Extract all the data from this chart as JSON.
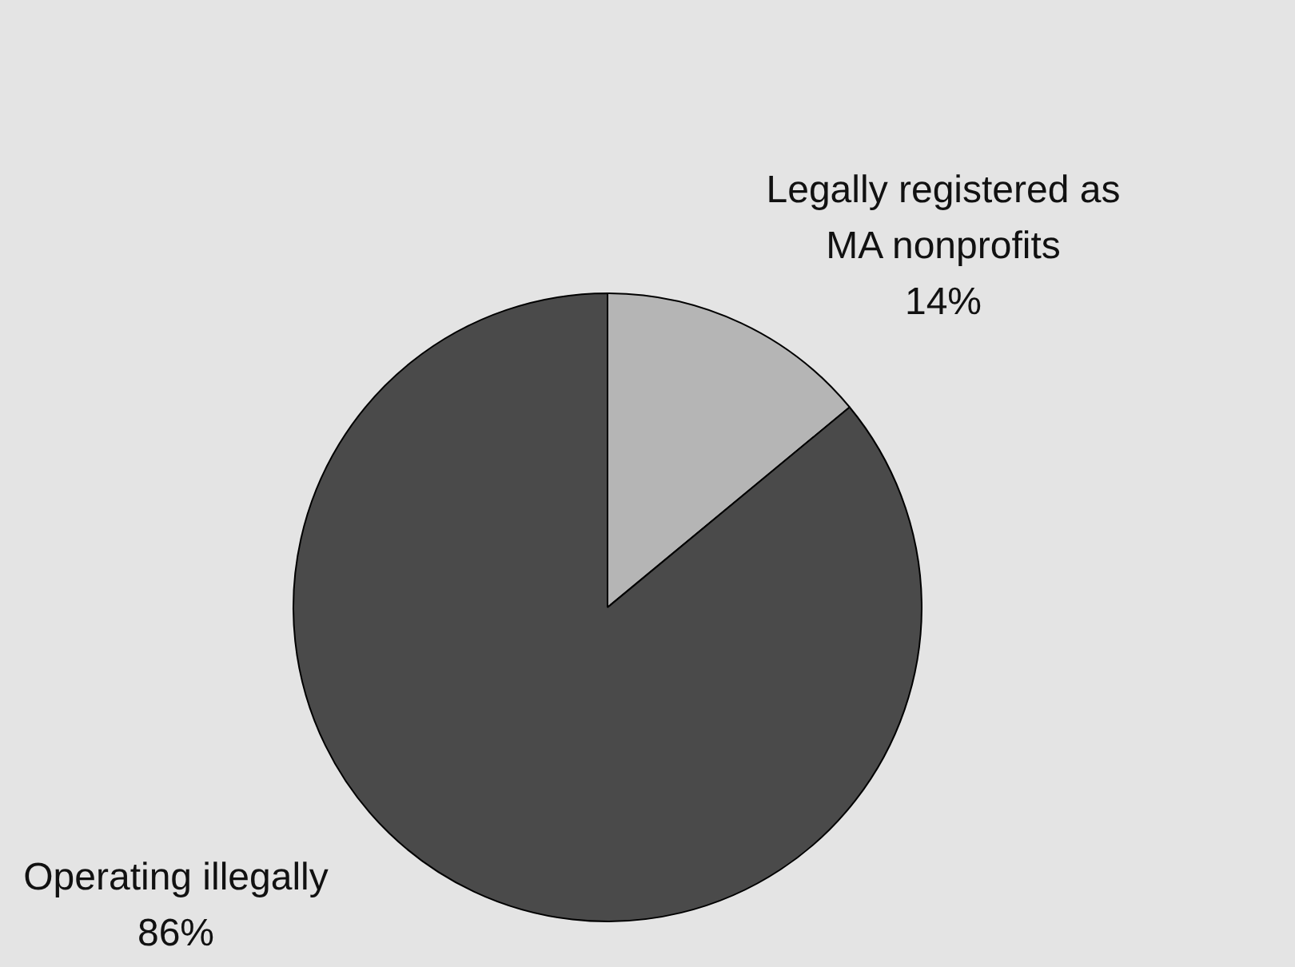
{
  "chart_data": {
    "type": "pie",
    "categories": [
      "Legally registered as MA nonprofits",
      "Operating illegally"
    ],
    "values": [
      14,
      86
    ],
    "colors": [
      "#b5b5b5",
      "#4a4a4a"
    ],
    "value_labels": [
      "14%",
      "86%"
    ],
    "legend": false
  }
}
